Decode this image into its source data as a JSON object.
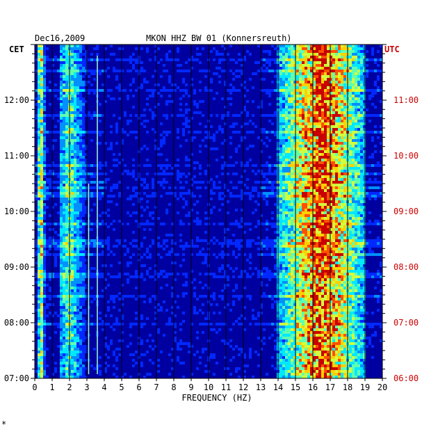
{
  "chart_data": {
    "type": "heatmap",
    "date": "Dec16,2009",
    "title": "MKON HHZ BW 01 (Konnersreuth)",
    "xlabel": "FREQUENCY (HZ)",
    "xlim": [
      0,
      20
    ],
    "x_ticks": [
      "0",
      "1",
      "2",
      "3",
      "4",
      "5",
      "6",
      "7",
      "8",
      "9",
      "10",
      "11",
      "12",
      "13",
      "14",
      "15",
      "16",
      "17",
      "18",
      "19",
      "20"
    ],
    "left_axis": {
      "label": "CET",
      "ticks": [
        "12:00",
        "11:00",
        "10:00",
        "09:00",
        "08:00",
        "07:00"
      ],
      "color": "#000000"
    },
    "right_axis": {
      "label": "UTC",
      "ticks": [
        "11:00",
        "10:00",
        "09:00",
        "08:00",
        "07:00",
        "06:00"
      ],
      "color": "#cc0000"
    },
    "time_range_cet_hours": [
      7.0,
      13.0
    ],
    "colormap": [
      "#00007a",
      "#0000c8",
      "#0028ff",
      "#0090ff",
      "#00e8ff",
      "#60ffb0",
      "#d0ff40",
      "#ffd000",
      "#ff5000",
      "#c80000"
    ],
    "high_energy_bands_hz": [
      {
        "from": 14.0,
        "to": 19.0,
        "peak": 16.5,
        "intensity": 0.8
      },
      {
        "from": 0.2,
        "to": 0.6,
        "peak": 0.35,
        "intensity": 0.55
      },
      {
        "from": 1.5,
        "to": 3.0,
        "peak": 2.0,
        "intensity": 0.4
      }
    ],
    "narrow_lines_hz": [
      3.1,
      3.6
    ],
    "footer_mark": "*"
  }
}
